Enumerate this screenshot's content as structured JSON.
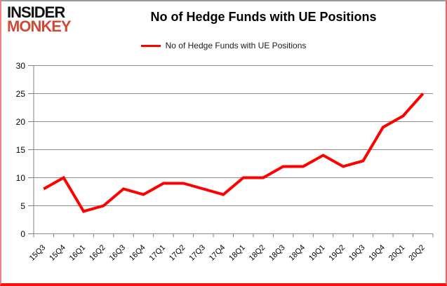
{
  "logo": {
    "line1": "INSIDER",
    "line2": "MONKEY",
    "line1_color": "#121212",
    "line2_color": "#cf4a36"
  },
  "header": {
    "title": "No of Hedge Funds with UE Positions"
  },
  "legend": {
    "label": "No of Hedge Funds with UE Positions",
    "marker": "red-line-icon",
    "marker_color": "#ff0000"
  },
  "chart_data": {
    "type": "line",
    "title": "No of Hedge Funds with UE Positions",
    "series": [
      {
        "name": "No of Hedge Funds with UE Positions",
        "values": [
          8,
          10,
          4,
          5,
          8,
          7,
          9,
          9,
          8,
          7,
          10,
          10,
          12,
          12,
          14,
          12,
          13,
          19,
          21,
          25
        ]
      }
    ],
    "categories": [
      "15Q3",
      "15Q4",
      "16Q1",
      "16Q2",
      "16Q3",
      "16Q4",
      "17Q1",
      "17Q2",
      "17Q3",
      "17Q4",
      "18Q1",
      "18Q2",
      "18Q3",
      "18Q4",
      "19Q1",
      "19Q2",
      "19Q3",
      "19Q4",
      "20Q1",
      "20Q2"
    ],
    "xlabel": "",
    "ylabel": "",
    "ylim": [
      0,
      30
    ],
    "ytick_step": 5,
    "yticks": [
      0,
      5,
      10,
      15,
      20,
      25,
      30
    ],
    "grid": true,
    "legend_position": "top",
    "line_color": "#ff0000",
    "gridline_color": "#8c8c8c",
    "axis_color": "#7f7f7f",
    "label_color": "#000000"
  }
}
